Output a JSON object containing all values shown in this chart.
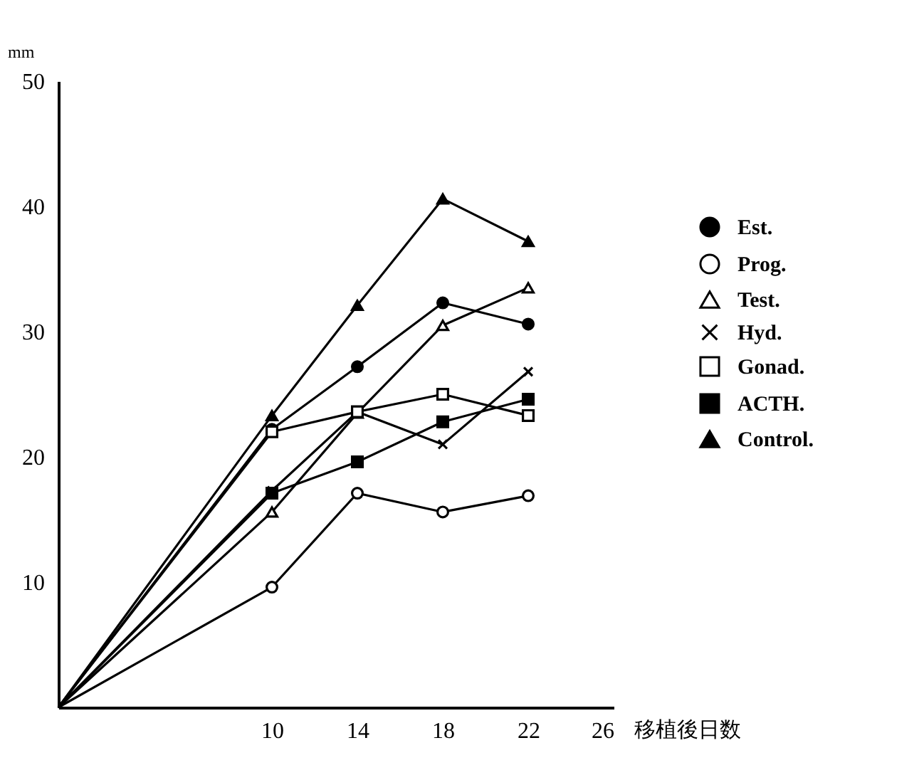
{
  "chart_data": {
    "type": "line",
    "xlabel": "移植後日数",
    "ylabel": "mm",
    "x": [
      0,
      10,
      14,
      18,
      22
    ],
    "xlim": [
      0,
      26
    ],
    "xticks": [
      10,
      14,
      18,
      22,
      26
    ],
    "ylim": [
      0,
      50
    ],
    "yticks": [
      10,
      20,
      30,
      40,
      50
    ],
    "grid": false,
    "legend": "right",
    "line_style": "solid",
    "series": [
      {
        "name": "Est.",
        "color": "#000000",
        "marker": "circle",
        "values": [
          0,
          22.2,
          27.2,
          32.3,
          30.6
        ]
      },
      {
        "name": "Prog.",
        "color": "#000000",
        "marker": "circle-open",
        "values": [
          0,
          9.6,
          17.1,
          15.6,
          16.9
        ]
      },
      {
        "name": "Test.",
        "color": "#000000",
        "marker": "triangle-open",
        "values": [
          0,
          15.6,
          23.5,
          30.5,
          33.5
        ]
      },
      {
        "name": "Hyd.",
        "color": "#000000",
        "marker": "cross",
        "values": [
          0,
          17.3,
          23.6,
          21.0,
          26.8
        ]
      },
      {
        "name": "Gonad.",
        "color": "#000000",
        "marker": "square-open",
        "values": [
          0,
          22.0,
          23.6,
          25.0,
          23.3
        ]
      },
      {
        "name": "ACTH.",
        "color": "#000000",
        "marker": "square",
        "values": [
          0,
          17.1,
          19.6,
          22.8,
          24.6
        ]
      },
      {
        "name": "Control.",
        "color": "#000000",
        "marker": "triangle",
        "values": [
          0,
          23.3,
          32.1,
          40.6,
          37.2
        ]
      }
    ]
  }
}
